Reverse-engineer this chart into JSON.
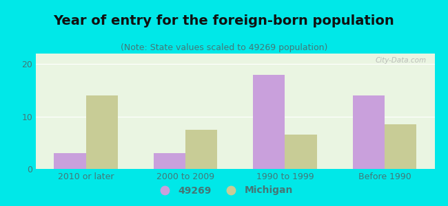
{
  "title": "Year of entry for the foreign-born population",
  "subtitle": "(Note: State values scaled to 49269 population)",
  "categories": [
    "2010 or later",
    "2000 to 2009",
    "1990 to 1999",
    "Before 1990"
  ],
  "values_49269": [
    3,
    3,
    18,
    14
  ],
  "values_michigan": [
    14,
    7.5,
    6.5,
    8.5
  ],
  "color_49269": "#c9a0dc",
  "color_michigan": "#c8cc96",
  "background_outer": "#00e8e8",
  "background_inner": "#eaf5e2",
  "ylim": [
    0,
    22
  ],
  "yticks": [
    0,
    10,
    20
  ],
  "bar_width": 0.32,
  "legend_label_49269": "49269",
  "legend_label_michigan": "Michigan",
  "title_fontsize": 14,
  "subtitle_fontsize": 9,
  "axis_label_fontsize": 9,
  "legend_fontsize": 10,
  "title_color": "#111111",
  "subtitle_color": "#447777",
  "tick_color": "#447777",
  "watermark": "City-Data.com"
}
